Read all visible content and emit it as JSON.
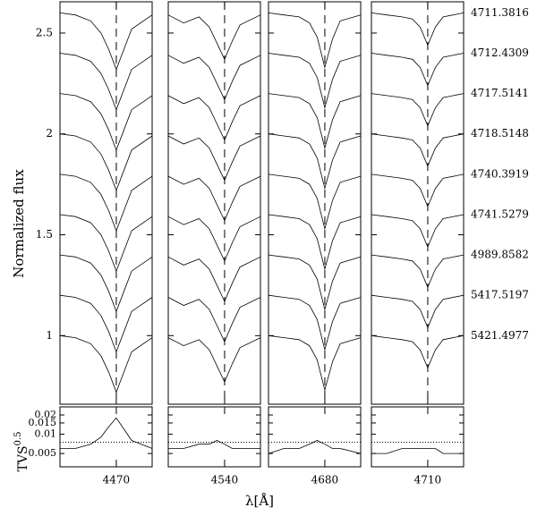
{
  "chart_data": {
    "type": "stacked-spectra",
    "ylabel": "Normalized flux",
    "xlabel": "λ[Å]",
    "ylim": [
      0.66,
      2.655
    ],
    "yticks": [
      1,
      1.5,
      2,
      2.5
    ],
    "color": "#000000",
    "epochs": [
      "4711.3816",
      "4712.4309",
      "4717.5141",
      "4718.5148",
      "4740.3919",
      "4741.5279",
      "4989.8582",
      "5417.5197",
      "5421.4977"
    ],
    "panels": [
      {
        "xlim": [
          4459,
          4477
        ],
        "xticks": [
          4470
        ],
        "rest_wavelength": 4470,
        "x": [
          4459,
          4462,
          4465,
          4467,
          4468.5,
          4470,
          4471.5,
          4473,
          4477
        ],
        "flux": [
          [
            2.6,
            2.59,
            2.56,
            2.5,
            2.42,
            2.32,
            2.42,
            2.52,
            2.59
          ],
          [
            2.4,
            2.39,
            2.36,
            2.3,
            2.22,
            2.12,
            2.22,
            2.32,
            2.39
          ],
          [
            2.2,
            2.19,
            2.16,
            2.1,
            2.02,
            1.92,
            2.02,
            2.12,
            2.19
          ],
          [
            2.0,
            1.99,
            1.96,
            1.9,
            1.82,
            1.72,
            1.82,
            1.92,
            1.99
          ],
          [
            1.8,
            1.79,
            1.76,
            1.7,
            1.62,
            1.52,
            1.62,
            1.72,
            1.79
          ],
          [
            1.6,
            1.59,
            1.56,
            1.5,
            1.42,
            1.32,
            1.42,
            1.52,
            1.59
          ],
          [
            1.4,
            1.39,
            1.36,
            1.3,
            1.22,
            1.12,
            1.22,
            1.32,
            1.39
          ],
          [
            1.2,
            1.19,
            1.16,
            1.1,
            1.02,
            0.92,
            1.02,
            1.12,
            1.19
          ],
          [
            1.0,
            0.99,
            0.96,
            0.9,
            0.82,
            0.72,
            0.82,
            0.92,
            0.99
          ]
        ],
        "tvs": [
          0.006,
          0.006,
          0.007,
          0.009,
          0.013,
          0.018,
          0.012,
          0.008,
          0.006
        ]
      },
      {
        "xlim": [
          4529,
          4547
        ],
        "xticks": [
          4540
        ],
        "rest_wavelength": 4540,
        "x": [
          4529,
          4532,
          4535,
          4537,
          4538.5,
          4540,
          4541.5,
          4543,
          4547
        ],
        "flux": [
          [
            2.59,
            2.55,
            2.58,
            2.53,
            2.45,
            2.37,
            2.46,
            2.54,
            2.59
          ],
          [
            2.39,
            2.35,
            2.38,
            2.33,
            2.25,
            2.17,
            2.26,
            2.34,
            2.39
          ],
          [
            2.19,
            2.15,
            2.18,
            2.13,
            2.05,
            1.97,
            2.06,
            2.14,
            2.19
          ],
          [
            1.99,
            1.95,
            1.98,
            1.93,
            1.85,
            1.77,
            1.86,
            1.94,
            1.99
          ],
          [
            1.79,
            1.75,
            1.78,
            1.73,
            1.65,
            1.57,
            1.66,
            1.74,
            1.79
          ],
          [
            1.59,
            1.55,
            1.58,
            1.53,
            1.45,
            1.37,
            1.46,
            1.54,
            1.59
          ],
          [
            1.39,
            1.35,
            1.38,
            1.33,
            1.25,
            1.17,
            1.26,
            1.34,
            1.39
          ],
          [
            1.19,
            1.15,
            1.18,
            1.13,
            1.05,
            0.97,
            1.06,
            1.14,
            1.19
          ],
          [
            0.99,
            0.95,
            0.98,
            0.93,
            0.85,
            0.77,
            0.86,
            0.94,
            0.99
          ]
        ],
        "tvs": [
          0.006,
          0.006,
          0.007,
          0.007,
          0.008,
          0.007,
          0.006,
          0.006,
          0.006
        ]
      },
      {
        "xlim": [
          4669,
          4687
        ],
        "xticks": [
          4680
        ],
        "rest_wavelength": 4680,
        "x": [
          4669,
          4672,
          4675,
          4677,
          4678.5,
          4680,
          4681.5,
          4683,
          4687
        ],
        "flux": [
          [
            2.6,
            2.59,
            2.58,
            2.55,
            2.48,
            2.33,
            2.47,
            2.56,
            2.59
          ],
          [
            2.4,
            2.39,
            2.38,
            2.35,
            2.28,
            2.13,
            2.27,
            2.36,
            2.39
          ],
          [
            2.2,
            2.19,
            2.18,
            2.15,
            2.08,
            1.93,
            2.07,
            2.16,
            2.19
          ],
          [
            2.0,
            1.99,
            1.98,
            1.95,
            1.88,
            1.73,
            1.87,
            1.96,
            1.99
          ],
          [
            1.8,
            1.79,
            1.78,
            1.75,
            1.68,
            1.53,
            1.67,
            1.76,
            1.79
          ],
          [
            1.6,
            1.59,
            1.58,
            1.55,
            1.48,
            1.33,
            1.47,
            1.56,
            1.59
          ],
          [
            1.4,
            1.39,
            1.38,
            1.35,
            1.28,
            1.13,
            1.27,
            1.36,
            1.39
          ],
          [
            1.2,
            1.19,
            1.18,
            1.15,
            1.08,
            0.93,
            1.07,
            1.16,
            1.19
          ],
          [
            1.0,
            0.99,
            0.98,
            0.95,
            0.88,
            0.73,
            0.87,
            0.96,
            0.99
          ]
        ],
        "tvs": [
          0.005,
          0.006,
          0.006,
          0.007,
          0.008,
          0.007,
          0.006,
          0.006,
          0.005
        ]
      },
      {
        "xlim": [
          4699,
          4717
        ],
        "xticks": [
          4710
        ],
        "rest_wavelength": 4710,
        "x": [
          4699,
          4702,
          4705,
          4707,
          4708.5,
          4710,
          4711.5,
          4713,
          4717
        ],
        "flux": [
          [
            2.6,
            2.59,
            2.58,
            2.57,
            2.53,
            2.44,
            2.53,
            2.58,
            2.6
          ],
          [
            2.4,
            2.39,
            2.38,
            2.37,
            2.33,
            2.24,
            2.33,
            2.38,
            2.4
          ],
          [
            2.2,
            2.19,
            2.18,
            2.17,
            2.13,
            2.04,
            2.13,
            2.18,
            2.2
          ],
          [
            2.0,
            1.99,
            1.98,
            1.97,
            1.93,
            1.84,
            1.93,
            1.98,
            2.0
          ],
          [
            1.8,
            1.79,
            1.78,
            1.77,
            1.73,
            1.64,
            1.73,
            1.78,
            1.8
          ],
          [
            1.6,
            1.59,
            1.58,
            1.57,
            1.53,
            1.44,
            1.53,
            1.58,
            1.6
          ],
          [
            1.4,
            1.39,
            1.38,
            1.37,
            1.33,
            1.24,
            1.33,
            1.38,
            1.4
          ],
          [
            1.2,
            1.19,
            1.18,
            1.17,
            1.13,
            1.04,
            1.13,
            1.18,
            1.2
          ],
          [
            1.0,
            0.99,
            0.98,
            0.97,
            0.93,
            0.84,
            0.93,
            0.98,
            1.0
          ]
        ],
        "tvs": [
          0.005,
          0.005,
          0.006,
          0.006,
          0.006,
          0.006,
          0.006,
          0.005,
          0.005
        ]
      }
    ],
    "tvs_axis": {
      "ylabel": "TVS",
      "ylabel_exponent": "0.5",
      "log": true,
      "ylim": [
        0.0031,
        0.0267
      ],
      "yticks": [
        0.005,
        0.01,
        0.015,
        0.02
      ],
      "threshold": 0.0075
    }
  }
}
